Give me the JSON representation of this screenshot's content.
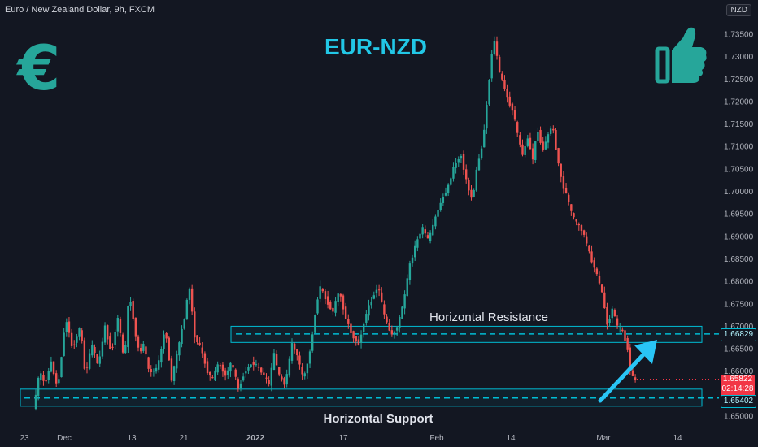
{
  "header": {
    "symbol_line": "Euro / New Zealand Dollar, 9h, FXCM",
    "currency": "NZD"
  },
  "title": "EUR-NZD",
  "icons": {
    "left": "euro-sign-icon",
    "right": "thumbs-up-icon"
  },
  "colors": {
    "bg": "#131722",
    "up": "#26a69a",
    "down": "#ef5350",
    "accent": "#00bcd4",
    "title": "#22c7e6",
    "icon": "#26a69a",
    "last": "#f23645"
  },
  "labels": {
    "resistance": "Horizontal Resistance",
    "support": "Horizontal Support"
  },
  "price_tags": {
    "resistance": "1.66829",
    "support": "1.65402",
    "last_price": "1.65822",
    "countdown": "02:14:28"
  },
  "chart_data": {
    "type": "candlestick",
    "title": "EUR-NZD",
    "y_ticks": [
      "1.73500",
      "1.73000",
      "1.72500",
      "1.72000",
      "1.71500",
      "1.71000",
      "1.70500",
      "1.70000",
      "1.69500",
      "1.69000",
      "1.68500",
      "1.68000",
      "1.67500",
      "1.67000",
      "1.66500",
      "1.66000",
      "1.65500",
      "1.65000"
    ],
    "x_ticks": [
      "23",
      "Dec",
      "13",
      "21",
      "2022",
      "17",
      "Feb",
      "14",
      "Mar",
      "14"
    ],
    "ylim": [
      1.648,
      1.738
    ],
    "resistance_zone": {
      "low": 1.6664,
      "high": 1.67,
      "level": 1.66829
    },
    "support_zone": {
      "low": 1.6522,
      "high": 1.656,
      "level": 1.65402
    },
    "last_price": 1.65822,
    "path": [
      [
        0,
        1.6515
      ],
      [
        8,
        1.66
      ],
      [
        14,
        1.657
      ],
      [
        22,
        1.662
      ],
      [
        30,
        1.656
      ],
      [
        40,
        1.672
      ],
      [
        48,
        1.665
      ],
      [
        58,
        1.67
      ],
      [
        64,
        1.659
      ],
      [
        72,
        1.666
      ],
      [
        80,
        1.661
      ],
      [
        88,
        1.67
      ],
      [
        96,
        1.664
      ],
      [
        104,
        1.672
      ],
      [
        112,
        1.662
      ],
      [
        118,
        1.678
      ],
      [
        124,
        1.67
      ],
      [
        130,
        1.664
      ],
      [
        136,
        1.666
      ],
      [
        142,
        1.66
      ],
      [
        150,
        1.66
      ],
      [
        156,
        1.663
      ],
      [
        162,
        1.67
      ],
      [
        170,
        1.658
      ],
      [
        178,
        1.665
      ],
      [
        186,
        1.672
      ],
      [
        192,
        1.679
      ],
      [
        198,
        1.668
      ],
      [
        206,
        1.665
      ],
      [
        214,
        1.66
      ],
      [
        220,
        1.658
      ],
      [
        228,
        1.662
      ],
      [
        236,
        1.659
      ],
      [
        244,
        1.662
      ],
      [
        252,
        1.656
      ],
      [
        260,
        1.66
      ],
      [
        270,
        1.662
      ],
      [
        280,
        1.66
      ],
      [
        290,
        1.657
      ],
      [
        296,
        1.664
      ],
      [
        302,
        1.659
      ],
      [
        310,
        1.657
      ],
      [
        318,
        1.666
      ],
      [
        324,
        1.664
      ],
      [
        332,
        1.658
      ],
      [
        340,
        1.664
      ],
      [
        346,
        1.672
      ],
      [
        352,
        1.679
      ],
      [
        360,
        1.676
      ],
      [
        368,
        1.673
      ],
      [
        376,
        1.678
      ],
      [
        384,
        1.672
      ],
      [
        392,
        1.668
      ],
      [
        400,
        1.666
      ],
      [
        408,
        1.672
      ],
      [
        416,
        1.676
      ],
      [
        424,
        1.679
      ],
      [
        432,
        1.672
      ],
      [
        440,
        1.668
      ],
      [
        448,
        1.67
      ],
      [
        456,
        1.676
      ],
      [
        462,
        1.683
      ],
      [
        470,
        1.688
      ],
      [
        478,
        1.692
      ],
      [
        486,
        1.689
      ],
      [
        494,
        1.694
      ],
      [
        502,
        1.698
      ],
      [
        510,
        1.701
      ],
      [
        518,
        1.706
      ],
      [
        526,
        1.708
      ],
      [
        534,
        1.701
      ],
      [
        540,
        1.698
      ],
      [
        546,
        1.706
      ],
      [
        552,
        1.71
      ],
      [
        558,
        1.72
      ],
      [
        564,
        1.731
      ],
      [
        568,
        1.734
      ],
      [
        572,
        1.727
      ],
      [
        578,
        1.724
      ],
      [
        584,
        1.72
      ],
      [
        590,
        1.718
      ],
      [
        596,
        1.712
      ],
      [
        602,
        1.708
      ],
      [
        608,
        1.712
      ],
      [
        614,
        1.707
      ],
      [
        620,
        1.714
      ],
      [
        626,
        1.709
      ],
      [
        632,
        1.712
      ],
      [
        638,
        1.715
      ],
      [
        644,
        1.708
      ],
      [
        650,
        1.702
      ],
      [
        656,
        1.699
      ],
      [
        662,
        1.695
      ],
      [
        668,
        1.693
      ],
      [
        676,
        1.691
      ],
      [
        684,
        1.686
      ],
      [
        692,
        1.682
      ],
      [
        700,
        1.677
      ],
      [
        706,
        1.67
      ],
      [
        712,
        1.674
      ],
      [
        718,
        1.67
      ],
      [
        724,
        1.669
      ],
      [
        730,
        1.666
      ],
      [
        735,
        1.659
      ],
      [
        739,
        1.6582
      ]
    ]
  }
}
